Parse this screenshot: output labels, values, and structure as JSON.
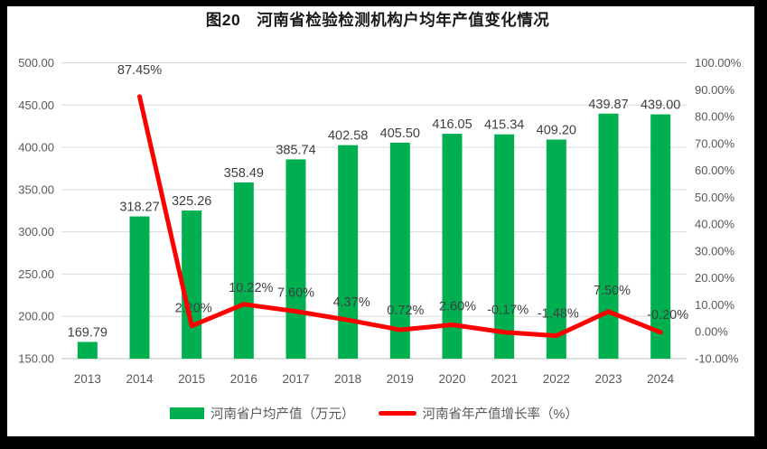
{
  "chart_data": {
    "type": "bar+line",
    "title": "图20　河南省检验检测机构户均年产值变化情况",
    "categories": [
      "2013",
      "2014",
      "2015",
      "2016",
      "2017",
      "2018",
      "2019",
      "2020",
      "2021",
      "2022",
      "2023",
      "2024"
    ],
    "series": [
      {
        "name": "河南省户均产值（万元）",
        "type": "bar",
        "color": "#00B050",
        "axis": "left",
        "values": [
          169.79,
          318.27,
          325.26,
          358.49,
          385.74,
          402.58,
          405.5,
          416.05,
          415.34,
          409.2,
          439.87,
          439.0
        ],
        "labels": [
          "169.79",
          "318.27",
          "325.26",
          "358.49",
          "385.74",
          "402.58",
          "405.50",
          "416.05",
          "415.34",
          "409.20",
          "439.87",
          "439.00"
        ]
      },
      {
        "name": "河南省年产值增长率（%）",
        "type": "line",
        "color": "#FF0000",
        "axis": "right",
        "values": [
          null,
          87.45,
          2.2,
          10.22,
          7.6,
          4.37,
          0.72,
          2.6,
          -0.17,
          -1.48,
          7.5,
          -0.2
        ],
        "labels": [
          null,
          "87.45%",
          "2.20%",
          "10.22%",
          "7.60%",
          "4.37%",
          "0.72%",
          "2.60%",
          "-0.17%",
          "-1.48%",
          "7.50%",
          "-0.20%"
        ]
      }
    ],
    "left_axis": {
      "min": 150,
      "max": 500,
      "tick_values": [
        500,
        450,
        400,
        350,
        300,
        250,
        200,
        150
      ],
      "tick_labels": [
        "500.00",
        "450.00",
        "400.00",
        "350.00",
        "300.00",
        "250.00",
        "200.00",
        "150.00"
      ]
    },
    "right_axis": {
      "min": -10,
      "max": 100,
      "tick_values": [
        100,
        90,
        80,
        70,
        60,
        50,
        40,
        30,
        20,
        10,
        0,
        -10
      ],
      "tick_labels": [
        "100.00%",
        "90.00%",
        "80.00%",
        "70.00%",
        "60.00%",
        "50.00%",
        "40.00%",
        "30.00%",
        "20.00%",
        "10.00%",
        "0.00%",
        "-10.00%"
      ]
    },
    "grid": true,
    "legend_position": "bottom",
    "colors": {
      "grid": "#D9D9D9",
      "axis_line": "#BFBFBF",
      "axis_text": "#595959",
      "data_label": "#3F3F3F",
      "frame": "#000000",
      "background": "#FFFFFF"
    }
  }
}
